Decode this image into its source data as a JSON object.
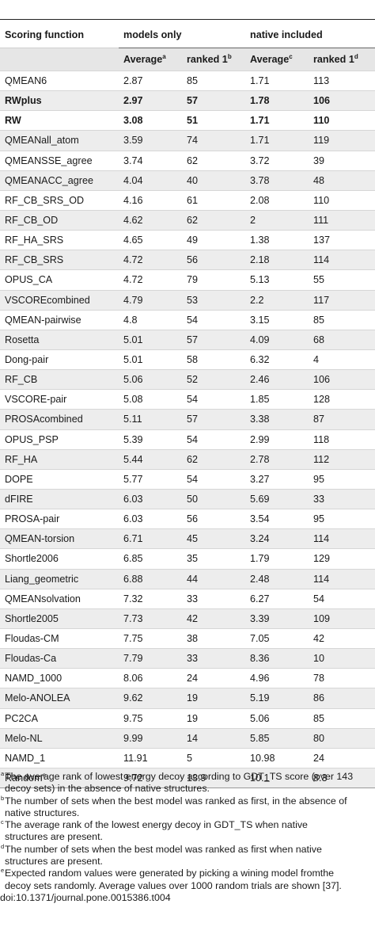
{
  "table": {
    "headers": {
      "scoring_function": "Scoring function",
      "models_only": "models only",
      "native_included": "native included",
      "average": "Average",
      "average_mark_models": "a",
      "ranked1": "ranked 1",
      "ranked1_mark_models": "b",
      "average_mark_native": "c",
      "ranked1_mark_native": "d"
    },
    "rows": [
      {
        "name": "QMEAN6",
        "avg_models": "2.87",
        "rank_models": "85",
        "avg_native": "1.71",
        "rank_native": "113",
        "bold": false
      },
      {
        "name": "RWplus",
        "avg_models": "2.97",
        "rank_models": "57",
        "avg_native": "1.78",
        "rank_native": "106",
        "bold": true
      },
      {
        "name": "RW",
        "avg_models": "3.08",
        "rank_models": "51",
        "avg_native": "1.71",
        "rank_native": "110",
        "bold": true
      },
      {
        "name": "QMEANall_atom",
        "avg_models": "3.59",
        "rank_models": "74",
        "avg_native": "1.71",
        "rank_native": "119",
        "bold": false
      },
      {
        "name": "QMEANSSE_agree",
        "avg_models": "3.74",
        "rank_models": "62",
        "avg_native": "3.72",
        "rank_native": "39",
        "bold": false
      },
      {
        "name": "QMEANACC_agree",
        "avg_models": "4.04",
        "rank_models": "40",
        "avg_native": "3.78",
        "rank_native": "48",
        "bold": false
      },
      {
        "name": "RF_CB_SRS_OD",
        "avg_models": "4.16",
        "rank_models": "61",
        "avg_native": "2.08",
        "rank_native": "110",
        "bold": false
      },
      {
        "name": "RF_CB_OD",
        "avg_models": "4.62",
        "rank_models": "62",
        "avg_native": "2",
        "rank_native": "111",
        "bold": false
      },
      {
        "name": "RF_HA_SRS",
        "avg_models": "4.65",
        "rank_models": "49",
        "avg_native": "1.38",
        "rank_native": "137",
        "bold": false
      },
      {
        "name": "RF_CB_SRS",
        "avg_models": "4.72",
        "rank_models": "56",
        "avg_native": "2.18",
        "rank_native": "114",
        "bold": false
      },
      {
        "name": "OPUS_CA",
        "avg_models": "4.72",
        "rank_models": "79",
        "avg_native": "5.13",
        "rank_native": "55",
        "bold": false
      },
      {
        "name": "VSCOREcombined",
        "avg_models": "4.79",
        "rank_models": "53",
        "avg_native": "2.2",
        "rank_native": "117",
        "bold": false
      },
      {
        "name": "QMEAN-pairwise",
        "avg_models": "4.8",
        "rank_models": "54",
        "avg_native": "3.15",
        "rank_native": "85",
        "bold": false
      },
      {
        "name": "Rosetta",
        "avg_models": "5.01",
        "rank_models": "57",
        "avg_native": "4.09",
        "rank_native": "68",
        "bold": false
      },
      {
        "name": "Dong-pair",
        "avg_models": "5.01",
        "rank_models": "58",
        "avg_native": "6.32",
        "rank_native": "4",
        "bold": false
      },
      {
        "name": "RF_CB",
        "avg_models": "5.06",
        "rank_models": "52",
        "avg_native": "2.46",
        "rank_native": "106",
        "bold": false
      },
      {
        "name": "VSCORE-pair",
        "avg_models": "5.08",
        "rank_models": "54",
        "avg_native": "1.85",
        "rank_native": "128",
        "bold": false
      },
      {
        "name": "PROSAcombined",
        "avg_models": "5.11",
        "rank_models": "57",
        "avg_native": "3.38",
        "rank_native": "87",
        "bold": false
      },
      {
        "name": "OPUS_PSP",
        "avg_models": "5.39",
        "rank_models": "54",
        "avg_native": "2.99",
        "rank_native": "118",
        "bold": false
      },
      {
        "name": "RF_HA",
        "avg_models": "5.44",
        "rank_models": "62",
        "avg_native": "2.78",
        "rank_native": "112",
        "bold": false
      },
      {
        "name": "DOPE",
        "avg_models": "5.77",
        "rank_models": "54",
        "avg_native": "3.27",
        "rank_native": "95",
        "bold": false
      },
      {
        "name": "dFIRE",
        "avg_models": "6.03",
        "rank_models": "50",
        "avg_native": "5.69",
        "rank_native": "33",
        "bold": false
      },
      {
        "name": "PROSA-pair",
        "avg_models": "6.03",
        "rank_models": "56",
        "avg_native": "3.54",
        "rank_native": "95",
        "bold": false
      },
      {
        "name": "QMEAN-torsion",
        "avg_models": "6.71",
        "rank_models": "45",
        "avg_native": "3.24",
        "rank_native": "114",
        "bold": false
      },
      {
        "name": "Shortle2006",
        "avg_models": "6.85",
        "rank_models": "35",
        "avg_native": "1.79",
        "rank_native": "129",
        "bold": false
      },
      {
        "name": "Liang_geometric",
        "avg_models": "6.88",
        "rank_models": "44",
        "avg_native": "2.48",
        "rank_native": "114",
        "bold": false
      },
      {
        "name": "QMEANsolvation",
        "avg_models": "7.32",
        "rank_models": "33",
        "avg_native": "6.27",
        "rank_native": "54",
        "bold": false
      },
      {
        "name": "Shortle2005",
        "avg_models": "7.73",
        "rank_models": "42",
        "avg_native": "3.39",
        "rank_native": "109",
        "bold": false
      },
      {
        "name": "Floudas-CM",
        "avg_models": "7.75",
        "rank_models": "38",
        "avg_native": "7.05",
        "rank_native": "42",
        "bold": false
      },
      {
        "name": "Floudas-Ca",
        "avg_models": "7.79",
        "rank_models": "33",
        "avg_native": "8.36",
        "rank_native": "10",
        "bold": false
      },
      {
        "name": "NAMD_1000",
        "avg_models": "8.06",
        "rank_models": "24",
        "avg_native": "4.96",
        "rank_native": "78",
        "bold": false
      },
      {
        "name": "Melo-ANOLEA",
        "avg_models": "9.62",
        "rank_models": "19",
        "avg_native": "5.19",
        "rank_native": "86",
        "bold": false
      },
      {
        "name": "PC2CA",
        "avg_models": "9.75",
        "rank_models": "19",
        "avg_native": "5.06",
        "rank_native": "85",
        "bold": false
      },
      {
        "name": "Melo-NL",
        "avg_models": "9.99",
        "rank_models": "14",
        "avg_native": "5.85",
        "rank_native": "80",
        "bold": false
      },
      {
        "name": "NAMD_1",
        "avg_models": "11.91",
        "rank_models": "5",
        "avg_native": "10.98",
        "rank_native": "24",
        "bold": false
      },
      {
        "name": "Random",
        "name_mark": "e",
        "avg_models": "9.72",
        "rank_models": "13.9",
        "avg_native": "10.1",
        "rank_native": "8.3",
        "bold": false
      }
    ]
  },
  "footnotes": [
    {
      "mark": "a",
      "lines": [
        "The average rank of lowest energy decoy according to GDT_TS score (over 143",
        "decoy sets) in the absence of native structures."
      ]
    },
    {
      "mark": "b",
      "lines": [
        "The number of sets when the best model was ranked as first, in the absence of",
        "native structures."
      ]
    },
    {
      "mark": "c",
      "lines": [
        "The average rank of the lowest energy decoy in GDT_TS when native",
        "structures are present."
      ]
    },
    {
      "mark": "d",
      "lines": [
        "The number of sets when the best model was ranked as first when native",
        "structures are present."
      ]
    },
    {
      "mark": "e",
      "lines": [
        "Expected random values were generated by picking a wining model fromthe",
        "decoy sets randomly. Average values over 1000 random trials are shown [37]."
      ]
    }
  ],
  "doi": "doi:10.1371/journal.pone.0015386.t004"
}
